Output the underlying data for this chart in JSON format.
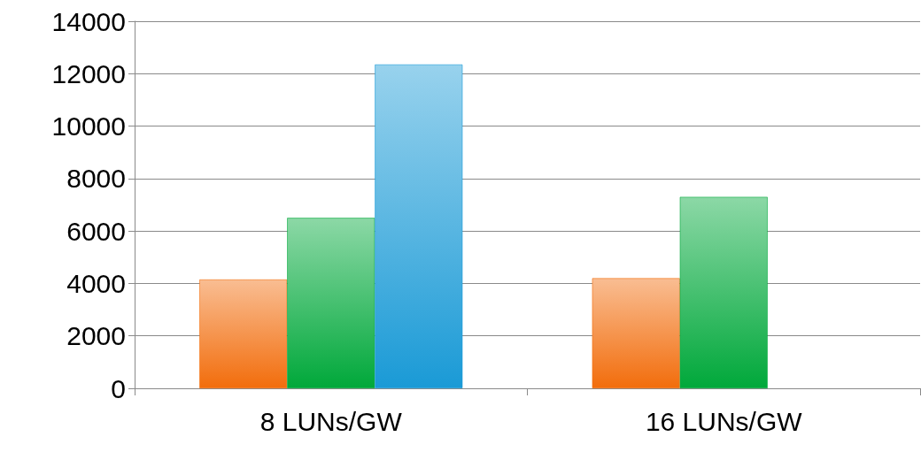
{
  "chart_data": {
    "type": "bar",
    "categories": [
      "8 LUNs/GW",
      "16 LUNs/GW"
    ],
    "series": [
      {
        "color": "#f26d0c",
        "values": [
          4150,
          4200
        ]
      },
      {
        "color": "#00a83a",
        "values": [
          6500,
          7300
        ]
      },
      {
        "color": "#1a9ad6",
        "values": [
          12350,
          null
        ]
      }
    ],
    "ylim": [
      0,
      14000
    ],
    "yticks": [
      0,
      2000,
      4000,
      6000,
      8000,
      10000,
      12000,
      14000
    ],
    "grid": "y"
  }
}
